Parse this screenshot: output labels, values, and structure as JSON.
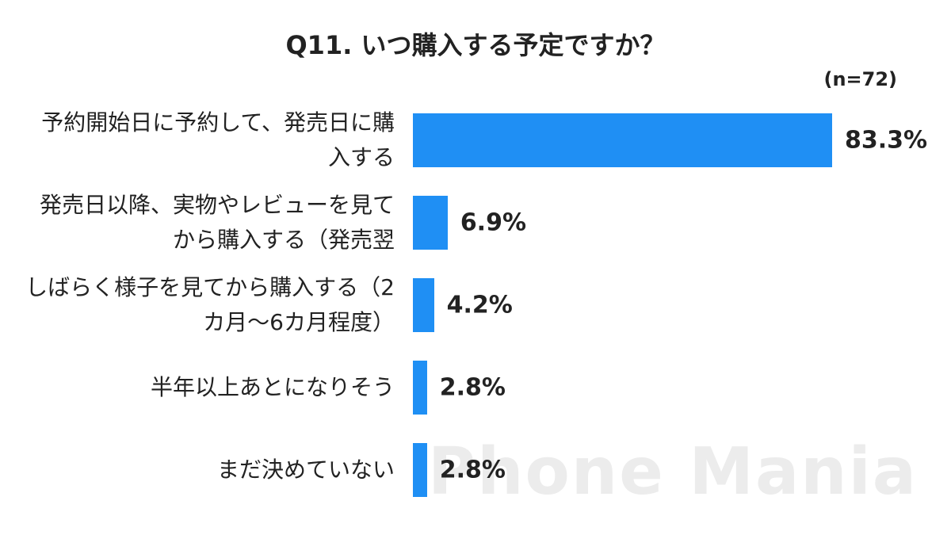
{
  "chart_data": {
    "type": "bar",
    "orientation": "horizontal",
    "title": "Q11. いつ購入する予定ですか？",
    "subtitle": "(n=72)",
    "watermark": "Phone Mania",
    "categories": [
      "予約開始日に予約して、発売日に購入する",
      "発売日以降、実物やレビューを見てから購入する（発売翌",
      "しばらく様子を見てから購入する（2カ月〜6カ月程度）",
      "半年以上あとになりそう",
      "まだ決めていない"
    ],
    "values": [
      83.3,
      6.9,
      4.2,
      2.8,
      2.8
    ],
    "value_labels": [
      "83.3%",
      "6.9%",
      "4.2%",
      "2.8%",
      "2.8%"
    ],
    "color": "#1f8ff4"
  }
}
